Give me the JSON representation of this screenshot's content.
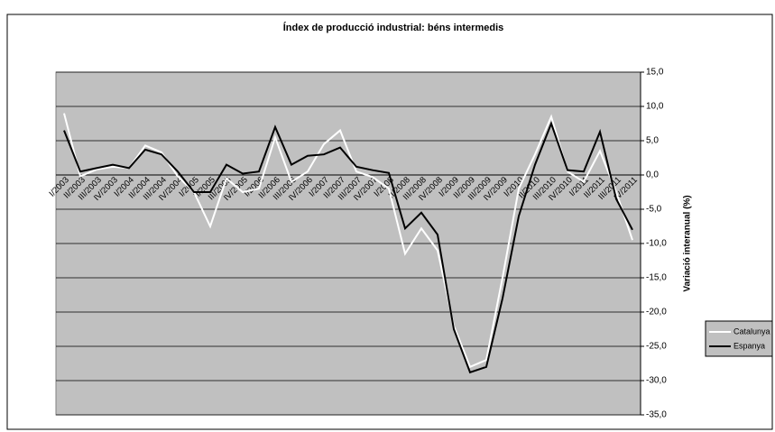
{
  "chart_data": {
    "type": "line",
    "title": "Índex de producció industrial: béns intermedis",
    "y_label": "Variació interanual (%)",
    "categories": [
      "I/2003",
      "II/2003",
      "III/2003",
      "IV/2003",
      "I/2004",
      "II/2004",
      "III/2004",
      "IV/2004",
      "I/2005",
      "II/2005",
      "III/2005",
      "IV/2005",
      "I/2006",
      "II/2006",
      "III/2006",
      "IV/2006",
      "I/2007",
      "II/2007",
      "III/2007",
      "IV/2007",
      "I/2008",
      "II/2008",
      "III/2008",
      "IV/2008",
      "I/2009",
      "II/2009",
      "III/2009",
      "IV/2009",
      "I/2010",
      "II/2010",
      "III/2010",
      "IV/2010",
      "I/2011",
      "II/2011",
      "III/2011",
      "IV/2011"
    ],
    "series": [
      {
        "name": "Catalunya",
        "color": "#ffffff",
        "values": [
          9,
          -0.2,
          0.8,
          1.2,
          1,
          4.3,
          3.3,
          -0.2,
          -2.5,
          -7.5,
          -0.5,
          -2.5,
          -2,
          5.5,
          -1,
          0.5,
          4.5,
          6.5,
          0.5,
          -0.3,
          -2,
          -11.5,
          -7.8,
          -11,
          -22,
          -28,
          -27,
          -15,
          -2,
          3,
          8.5,
          0.5,
          -1,
          3.5,
          -2.5,
          -9.5
        ]
      },
      {
        "name": "Espanya",
        "color": "#000000",
        "values": [
          6.5,
          0.5,
          1,
          1.5,
          1,
          3.7,
          3,
          0.5,
          -2.5,
          -2.5,
          1.5,
          0.2,
          0.5,
          7,
          1.5,
          2.8,
          3,
          4,
          1.2,
          0.7,
          0.3,
          -7.8,
          -5.5,
          -8.7,
          -22.5,
          -28.8,
          -28,
          -18,
          -6,
          1.5,
          7.5,
          0.7,
          0.5,
          6.3,
          -3.5,
          -8
        ]
      }
    ],
    "ylim": [
      -35,
      15
    ],
    "yticks": [
      {
        "value": 15,
        "label": "15,0"
      },
      {
        "value": 10,
        "label": "10,0"
      },
      {
        "value": 5,
        "label": "5,0"
      },
      {
        "value": 0,
        "label": "0,0"
      },
      {
        "value": -5,
        "label": "-5,0"
      },
      {
        "value": -10,
        "label": "-10,0"
      },
      {
        "value": -15,
        "label": "-15,0"
      },
      {
        "value": -20,
        "label": "-20,0"
      },
      {
        "value": -25,
        "label": "-25,0"
      },
      {
        "value": -30,
        "label": "-30,0"
      },
      {
        "value": -35,
        "label": "-35,0"
      }
    ],
    "grid": true,
    "plot_background": "#c0c0c0"
  }
}
